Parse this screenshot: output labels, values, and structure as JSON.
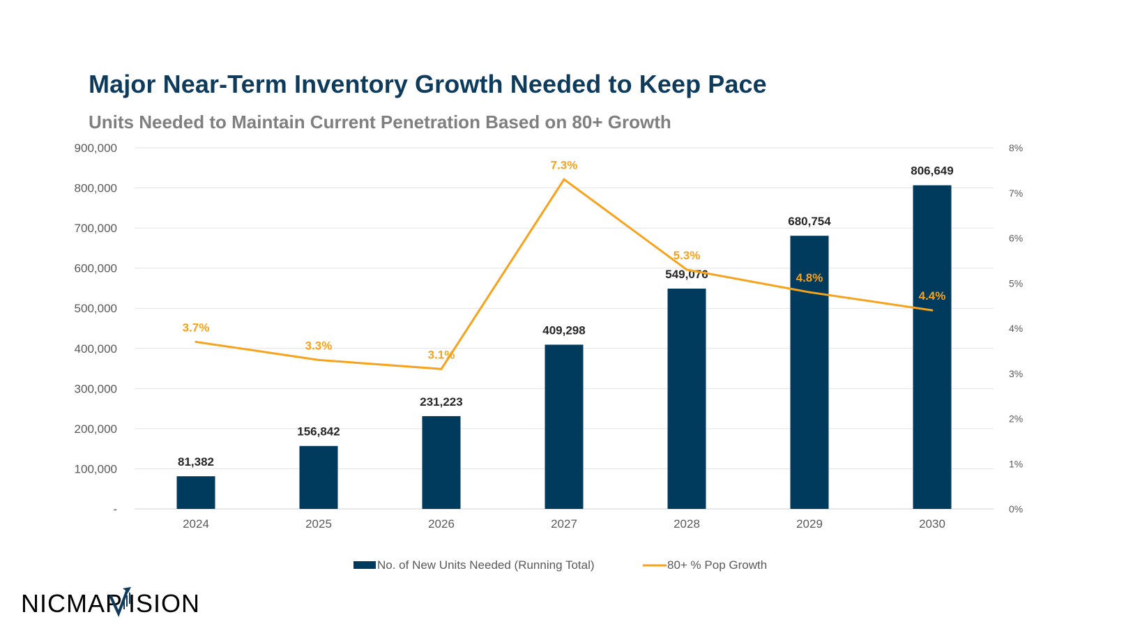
{
  "chart_data": {
    "type": "bar",
    "title": "Major Near-Term Inventory Growth Needed to Keep Pace",
    "subtitle": "Units Needed to Maintain Current Penetration Based on 80+ Growth",
    "categories": [
      "2024",
      "2025",
      "2026",
      "2027",
      "2028",
      "2029",
      "2030"
    ],
    "series": [
      {
        "name": "No. of New Units Needed (Running Total)",
        "type": "bar",
        "axis": "left",
        "color": "#003a5d",
        "values": [
          81382,
          156842,
          231223,
          409298,
          549076,
          680754,
          806649
        ],
        "labels": [
          "81,382",
          "156,842",
          "231,223",
          "409,298",
          "549,076",
          "680,754",
          "806,649"
        ]
      },
      {
        "name": "80+ % Pop Growth",
        "type": "line",
        "axis": "right",
        "color": "#f7a21b",
        "values": [
          3.7,
          3.3,
          3.1,
          7.3,
          5.3,
          4.8,
          4.4
        ],
        "labels": [
          "3.7%",
          "3.3%",
          "3.1%",
          "7.3%",
          "5.3%",
          "4.8%",
          "4.4%"
        ]
      }
    ],
    "y_left": {
      "ylim": [
        0,
        900000
      ],
      "ticks": [
        "-",
        "100,000",
        "200,000",
        "300,000",
        "400,000",
        "500,000",
        "600,000",
        "700,000",
        "800,000",
        "900,000"
      ]
    },
    "y_right": {
      "ylim": [
        0,
        8
      ],
      "ticks": [
        "0%",
        "1%",
        "2%",
        "3%",
        "4%",
        "5%",
        "6%",
        "7%",
        "8%"
      ]
    },
    "grid": true,
    "legend": "bottom"
  },
  "logo": {
    "text_left": "NICMAP",
    "text_right": "ISION"
  }
}
